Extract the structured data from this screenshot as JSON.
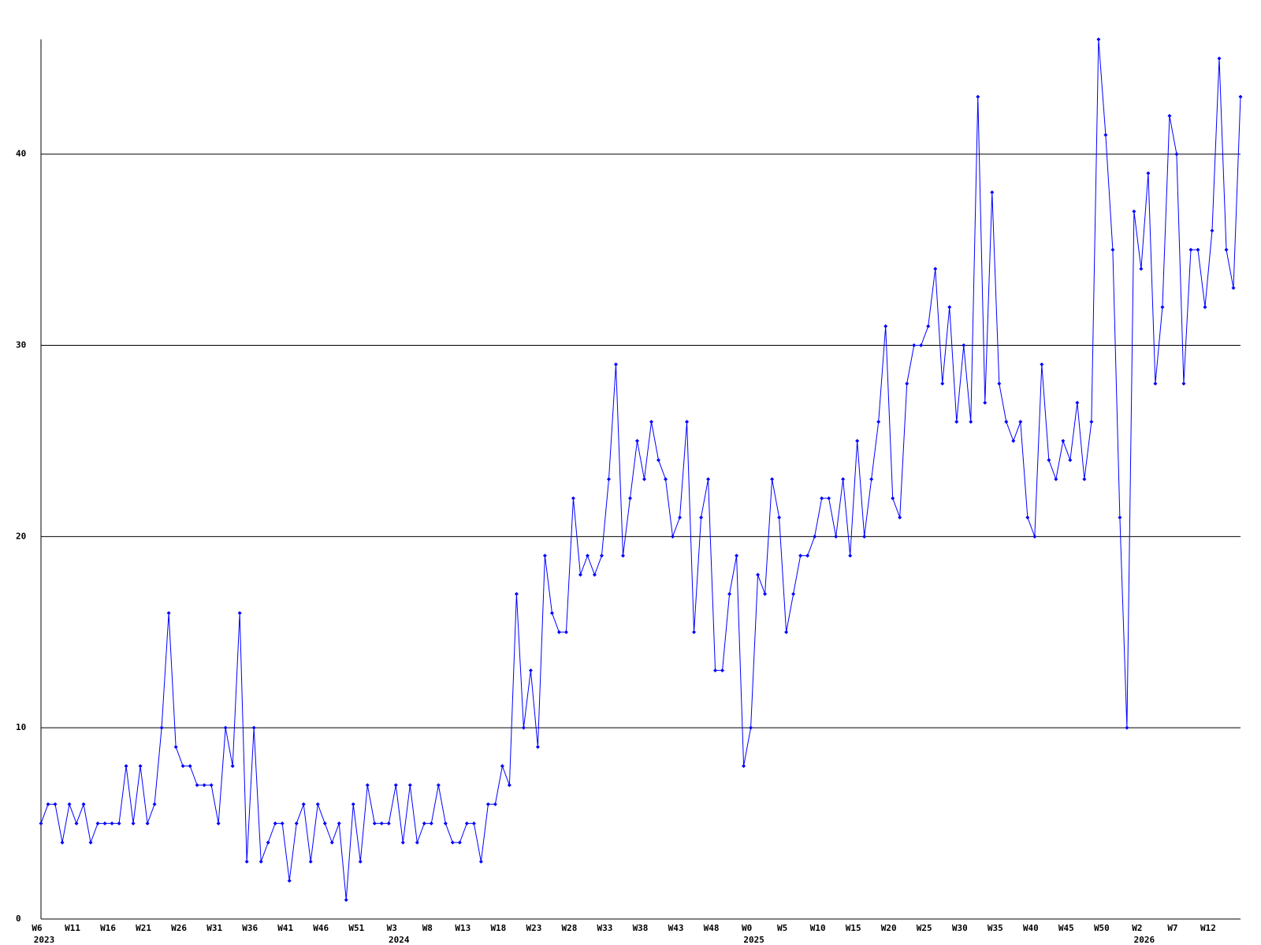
{
  "chart_data": {
    "type": "line",
    "categories": [
      "W6",
      null,
      null,
      null,
      null,
      "W11",
      null,
      null,
      null,
      null,
      "W16",
      null,
      null,
      null,
      null,
      "W21",
      null,
      null,
      null,
      null,
      "W26",
      null,
      null,
      null,
      null,
      "W31",
      null,
      null,
      null,
      null,
      "W36",
      null,
      null,
      null,
      null,
      "W41",
      null,
      null,
      null,
      null,
      "W46",
      null,
      null,
      null,
      null,
      "W51",
      null,
      null,
      null,
      null,
      "W3",
      null,
      null,
      null,
      null,
      "W8",
      null,
      null,
      null,
      null,
      "W13",
      null,
      null,
      null,
      null,
      "W18",
      null,
      null,
      null,
      null,
      "W23",
      null,
      null,
      null,
      null,
      "W28",
      null,
      null,
      null,
      null,
      "W33",
      null,
      null,
      null,
      null,
      "W38",
      null,
      null,
      null,
      null,
      "W43",
      null,
      null,
      null,
      null,
      "W48",
      null,
      null,
      null,
      null,
      "W0",
      null,
      null,
      null,
      null,
      "W5",
      null,
      null,
      null,
      null,
      "W10",
      null,
      null,
      null,
      null,
      "W15",
      null,
      null,
      null,
      null,
      "W20",
      null,
      null,
      null,
      null,
      "W25",
      null,
      null,
      null,
      null,
      "W30",
      null,
      null,
      null,
      null,
      "W35",
      null,
      null,
      null,
      null,
      "W40",
      null,
      null,
      null,
      null,
      "W45",
      null,
      null,
      null,
      null,
      "W50",
      null,
      null,
      null,
      null,
      "W2",
      null,
      null,
      null,
      null,
      "W7",
      null,
      null,
      null,
      null,
      "W12",
      null,
      null,
      null,
      null
    ],
    "years": [
      "2023",
      null,
      null,
      null,
      null,
      null,
      null,
      null,
      null,
      null,
      null,
      null,
      null,
      null,
      null,
      null,
      null,
      null,
      null,
      null,
      null,
      null,
      null,
      null,
      null,
      null,
      null,
      null,
      null,
      null,
      null,
      null,
      null,
      null,
      null,
      null,
      null,
      null,
      null,
      null,
      null,
      null,
      null,
      null,
      null,
      null,
      null,
      null,
      null,
      null,
      "2024",
      null,
      null,
      null,
      null,
      null,
      null,
      null,
      null,
      null,
      null,
      null,
      null,
      null,
      null,
      null,
      null,
      null,
      null,
      null,
      null,
      null,
      null,
      null,
      null,
      null,
      null,
      null,
      null,
      null,
      null,
      null,
      null,
      null,
      null,
      null,
      null,
      null,
      null,
      null,
      null,
      null,
      null,
      null,
      null,
      null,
      null,
      null,
      null,
      null,
      "2025",
      null,
      null,
      null,
      null,
      null,
      null,
      null,
      null,
      null,
      null,
      null,
      null,
      null,
      null,
      null,
      null,
      null,
      null,
      null,
      null,
      null,
      null,
      null,
      null,
      null,
      null,
      null,
      null,
      null,
      null,
      null,
      null,
      null,
      null,
      null,
      null,
      null,
      null,
      null,
      null,
      null,
      null,
      null,
      null,
      null,
      null,
      null,
      null,
      null,
      null,
      null,
      null,
      null,
      null,
      "2026",
      null,
      null,
      null,
      null,
      null,
      null,
      null,
      null,
      null,
      null,
      null,
      null,
      null,
      null
    ],
    "values": [
      5,
      6,
      6,
      4,
      6,
      5,
      6,
      4,
      5,
      5,
      5,
      5,
      8,
      5,
      8,
      5,
      6,
      10,
      16,
      9,
      8,
      8,
      7,
      7,
      7,
      5,
      10,
      8,
      16,
      3,
      10,
      3,
      4,
      5,
      5,
      2,
      5,
      6,
      3,
      6,
      5,
      4,
      5,
      1,
      6,
      3,
      7,
      5,
      5,
      5,
      7,
      4,
      7,
      4,
      5,
      5,
      7,
      5,
      4,
      4,
      5,
      5,
      3,
      6,
      6,
      8,
      7,
      17,
      10,
      13,
      9,
      19,
      16,
      15,
      15,
      22,
      18,
      19,
      18,
      19,
      23,
      29,
      19,
      22,
      25,
      23,
      26,
      24,
      23,
      20,
      21,
      26,
      15,
      21,
      23,
      13,
      13,
      17,
      19,
      8,
      10,
      18,
      17,
      23,
      21,
      15,
      17,
      19,
      19,
      20,
      22,
      22,
      20,
      23,
      19,
      25,
      20,
      23,
      26,
      31,
      22,
      21,
      28,
      30,
      30,
      31,
      34,
      28,
      32,
      26,
      30,
      26,
      43,
      27,
      38,
      28,
      26,
      25,
      26,
      21,
      20,
      29,
      24,
      23,
      25,
      24,
      27,
      23,
      26,
      46,
      41,
      35,
      21,
      10,
      37,
      34,
      39,
      28,
      32,
      42,
      40,
      28,
      35,
      35,
      32,
      36,
      45,
      35,
      33,
      43
    ],
    "color": "#0000ff",
    "ylim": [
      0,
      46
    ],
    "yticks": [
      0,
      10,
      20,
      30,
      40
    ],
    "grid": true
  }
}
